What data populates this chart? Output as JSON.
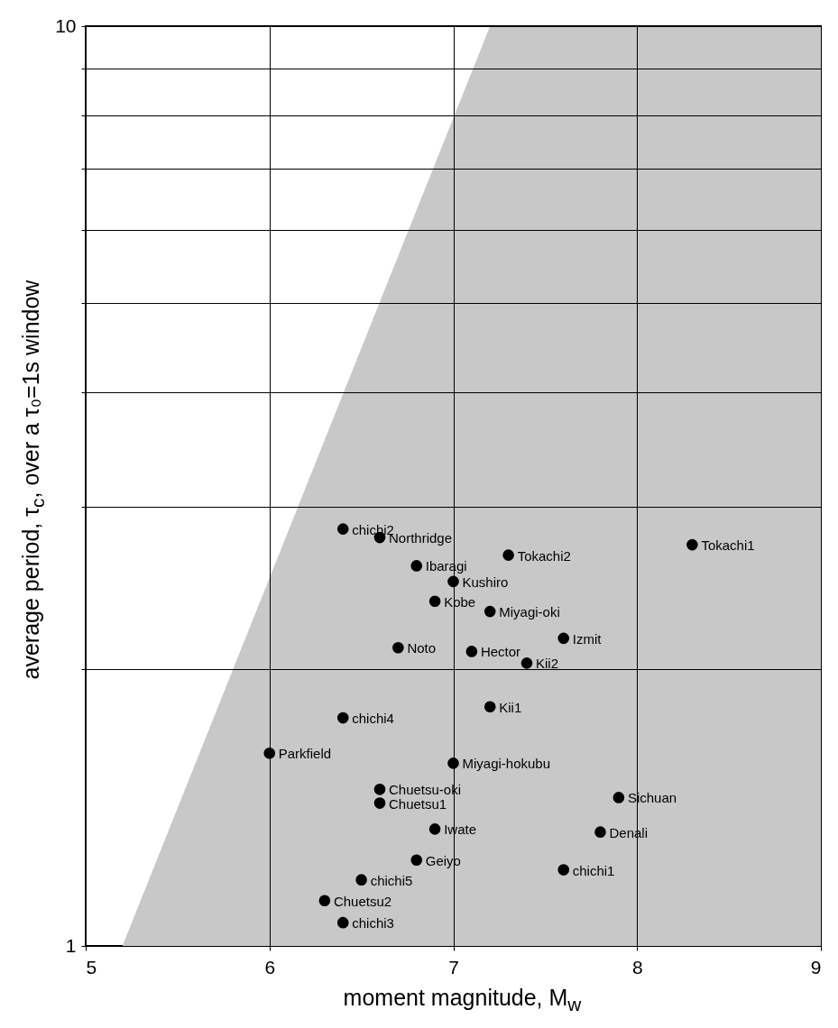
{
  "chart_data": {
    "type": "scatter",
    "xlabel": "moment magnitude, M$_{w}$",
    "ylabel": "average period, τ$_{c}$, over a τ₀=1s window",
    "log": "y",
    "grid": true,
    "marker": "circle",
    "xlim": [
      5,
      9
    ],
    "xticks": [
      5,
      6,
      7,
      8,
      9
    ],
    "ylim": [
      1,
      10
    ],
    "yticks": [
      1,
      {
        "value": 2,
        "label": null
      },
      {
        "value": 3,
        "label": null
      },
      {
        "value": 4,
        "label": null
      },
      {
        "value": 5,
        "label": null
      },
      {
        "value": 6,
        "label": null
      },
      {
        "value": 7,
        "label": null
      },
      {
        "value": 8,
        "label": null
      },
      {
        "value": 9,
        "label": null
      },
      10
    ],
    "series": [
      {
        "type": "area",
        "marker": "none",
        "color": "#c8c8c8",
        "x": [
          5.2,
          7.2,
          9
        ],
        "values": [
          1,
          10,
          10
        ]
      },
      {
        "color": "#000000",
        "x": [
          6.4,
          6.6,
          6.8,
          7.3,
          8.3,
          7.0,
          6.9,
          7.2,
          7.6,
          6.7,
          7.1,
          7.4,
          7.2,
          6.4,
          6.0,
          7.0,
          6.6,
          6.6,
          7.9,
          6.9,
          7.8,
          6.8,
          7.6,
          6.5,
          6.3,
          6.4
        ],
        "values": [
          2.84,
          2.78,
          2.59,
          2.66,
          2.73,
          2.49,
          2.37,
          2.31,
          2.16,
          2.11,
          2.09,
          2.03,
          1.82,
          1.77,
          1.62,
          1.58,
          1.48,
          1.43,
          1.45,
          1.34,
          1.33,
          1.24,
          1.21,
          1.18,
          1.12,
          1.06
        ]
      }
    ],
    "annotations": [
      {
        "text": "chichi2",
        "x": 6.4,
        "y": 2.84
      },
      {
        "text": "Northridge",
        "x": 6.6,
        "y": 2.78
      },
      {
        "text": "Ibaragi",
        "x": 6.8,
        "y": 2.59
      },
      {
        "text": "Tokachi2",
        "x": 7.3,
        "y": 2.66
      },
      {
        "text": "Tokachi1",
        "x": 8.3,
        "y": 2.73
      },
      {
        "text": "Kushiro",
        "x": 7.0,
        "y": 2.49
      },
      {
        "text": "Kobe",
        "x": 6.9,
        "y": 2.37
      },
      {
        "text": "Miyagi-oki",
        "x": 7.2,
        "y": 2.31
      },
      {
        "text": "Izmit",
        "x": 7.6,
        "y": 2.16
      },
      {
        "text": "Noto",
        "x": 6.7,
        "y": 2.11
      },
      {
        "text": "Hector",
        "x": 7.1,
        "y": 2.09
      },
      {
        "text": "Kii2",
        "x": 7.4,
        "y": 2.03
      },
      {
        "text": "Kii1",
        "x": 7.2,
        "y": 1.82
      },
      {
        "text": "chichi4",
        "x": 6.4,
        "y": 1.77
      },
      {
        "text": "Parkfield",
        "x": 6.0,
        "y": 1.62
      },
      {
        "text": "Miyagi-hokubu",
        "x": 7.0,
        "y": 1.58
      },
      {
        "text": "Chuetsu-oki",
        "x": 6.6,
        "y": 1.48
      },
      {
        "text": "Chuetsu1",
        "x": 6.6,
        "y": 1.43
      },
      {
        "text": "Sichuan",
        "x": 7.9,
        "y": 1.45
      },
      {
        "text": "Iwate",
        "x": 6.9,
        "y": 1.34
      },
      {
        "text": "Denali",
        "x": 7.8,
        "y": 1.33
      },
      {
        "text": "Geiyo",
        "x": 6.8,
        "y": 1.24
      },
      {
        "text": "chichi1",
        "x": 7.6,
        "y": 1.21
      },
      {
        "text": "chichi5",
        "x": 6.5,
        "y": 1.18
      },
      {
        "text": "Chuetsu2",
        "x": 6.3,
        "y": 1.12
      },
      {
        "text": "chichi3",
        "x": 6.4,
        "y": 1.06
      }
    ]
  }
}
